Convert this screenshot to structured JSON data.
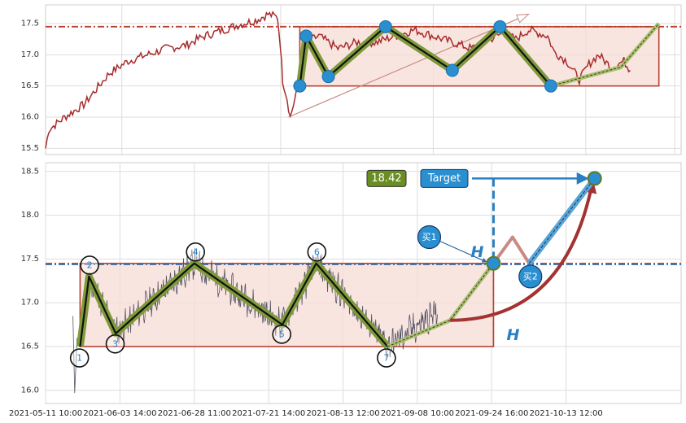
{
  "chart_data": [
    {
      "type": "line",
      "panel": "top",
      "ylim": [
        15.4,
        17.8
      ],
      "yticks": [
        "15.5",
        "16.0",
        "16.5",
        "17.0",
        "17.5"
      ],
      "ytick_values": [
        15.5,
        16.0,
        16.5,
        17.0,
        17.5
      ],
      "grid": true,
      "x_domain": [
        0,
        100
      ],
      "xgrid": [
        12,
        37,
        61,
        85,
        99
      ],
      "price_anchors": [
        [
          0,
          15.5
        ],
        [
          0.5,
          15.8
        ],
        [
          3,
          16.0
        ],
        [
          6,
          16.2
        ],
        [
          8,
          16.45
        ],
        [
          10,
          16.7
        ],
        [
          13,
          16.9
        ],
        [
          16,
          17.0
        ],
        [
          19,
          17.1
        ],
        [
          22,
          17.15
        ],
        [
          25,
          17.3
        ],
        [
          28,
          17.4
        ],
        [
          31,
          17.5
        ],
        [
          33,
          17.55
        ],
        [
          35,
          17.65
        ],
        [
          36.5,
          17.6
        ],
        [
          37,
          17.1
        ],
        [
          37.3,
          16.6
        ],
        [
          38,
          16.3
        ],
        [
          38.5,
          16.0
        ],
        [
          40,
          16.6
        ],
        [
          41,
          17.2
        ],
        [
          43,
          17.3
        ],
        [
          46,
          17.1
        ],
        [
          49,
          17.2
        ],
        [
          52,
          17.2
        ],
        [
          55,
          17.3
        ],
        [
          58,
          17.4
        ],
        [
          61,
          17.3
        ],
        [
          64,
          17.2
        ],
        [
          67,
          17.1
        ],
        [
          70,
          17.25
        ],
        [
          72,
          17.35
        ],
        [
          74,
          17.25
        ],
        [
          76,
          17.4
        ],
        [
          79,
          17.3
        ],
        [
          80,
          17.05
        ],
        [
          82,
          16.9
        ],
        [
          84,
          16.6
        ],
        [
          85.5,
          16.85
        ],
        [
          87,
          17.0
        ],
        [
          89,
          16.8
        ],
        [
          91,
          16.9
        ],
        [
          92,
          16.75
        ]
      ],
      "pattern_points": [
        [
          40,
          16.5
        ],
        [
          41,
          17.3
        ],
        [
          44.5,
          16.65
        ],
        [
          53.5,
          17.45
        ],
        [
          64,
          16.75
        ],
        [
          71.5,
          17.45
        ],
        [
          79.5,
          16.5
        ]
      ],
      "projection": [
        [
          79.5,
          16.5
        ],
        [
          90.5,
          16.8
        ],
        [
          96.5,
          17.5
        ]
      ],
      "box": {
        "x0": 40,
        "x1": 96.5,
        "y0": 16.5,
        "y1": 17.45
      },
      "resistance": 17.45,
      "trend_arrow": [
        [
          38.2,
          16.0
        ],
        [
          76,
          17.65
        ]
      ]
    },
    {
      "type": "line",
      "panel": "bottom",
      "ylim": [
        15.85,
        18.6
      ],
      "yticks": [
        "16.0",
        "16.5",
        "17.0",
        "17.5",
        "18.0",
        "18.5"
      ],
      "ytick_values": [
        16.0,
        16.5,
        17.0,
        17.5,
        18.0,
        18.5
      ],
      "grid": true,
      "x_domain": [
        0,
        100
      ],
      "xtick_values": [
        0,
        12.5,
        25,
        37.5,
        50,
        62.5,
        75,
        87.5
      ],
      "xticks": [
        "2021-05-11 10:00",
        "2021-06-03 14:00",
        "2021-06-28 11:00",
        "2021-07-21 14:00",
        "2021-08-13 12:00",
        "2021-09-08 10:00",
        "2021-09-24 16:00",
        "2021-10-13 12:00"
      ],
      "pattern_points": [
        [
          5.8,
          16.5
        ],
        [
          7.3,
          17.3
        ],
        [
          11.8,
          16.65
        ],
        [
          25,
          17.45
        ],
        [
          39.8,
          16.75
        ],
        [
          45.5,
          17.45
        ],
        [
          57.5,
          16.5
        ]
      ],
      "pattern_labels": [
        "1",
        "2",
        "3",
        "4",
        "5",
        "6",
        "7"
      ],
      "label_positions": [
        [
          5.7,
          16.37
        ],
        [
          7.4,
          17.43
        ],
        [
          11.7,
          16.53
        ],
        [
          25.2,
          17.58
        ],
        [
          39.7,
          16.64
        ],
        [
          45.6,
          17.58
        ],
        [
          57.3,
          16.37
        ]
      ],
      "box": {
        "x0": 5.8,
        "x1": 75.3,
        "y0": 16.5,
        "y1": 17.45
      },
      "resistance": 17.45,
      "breakout": [
        75.3,
        17.45
      ],
      "target": [
        92.3,
        18.42
      ],
      "target_value": "18.42",
      "target_label": "Target",
      "height_label": "H",
      "buy1_label": "买1",
      "buy2_label": "买2",
      "buy1_pos": [
        64.5,
        17.75
      ],
      "buy2_pos": [
        81.5,
        17.3
      ],
      "retest_peak": [
        78.5,
        17.75
      ],
      "retest_low": [
        81.3,
        17.45
      ],
      "projection": [
        [
          57.5,
          16.5
        ],
        [
          68,
          16.8
        ],
        [
          75.3,
          17.45
        ]
      ],
      "curve_arrow": {
        "from": [
          68,
          16.8
        ],
        "control": [
          87,
          16.8
        ],
        "to": [
          91.8,
          18.33
        ]
      }
    }
  ]
}
